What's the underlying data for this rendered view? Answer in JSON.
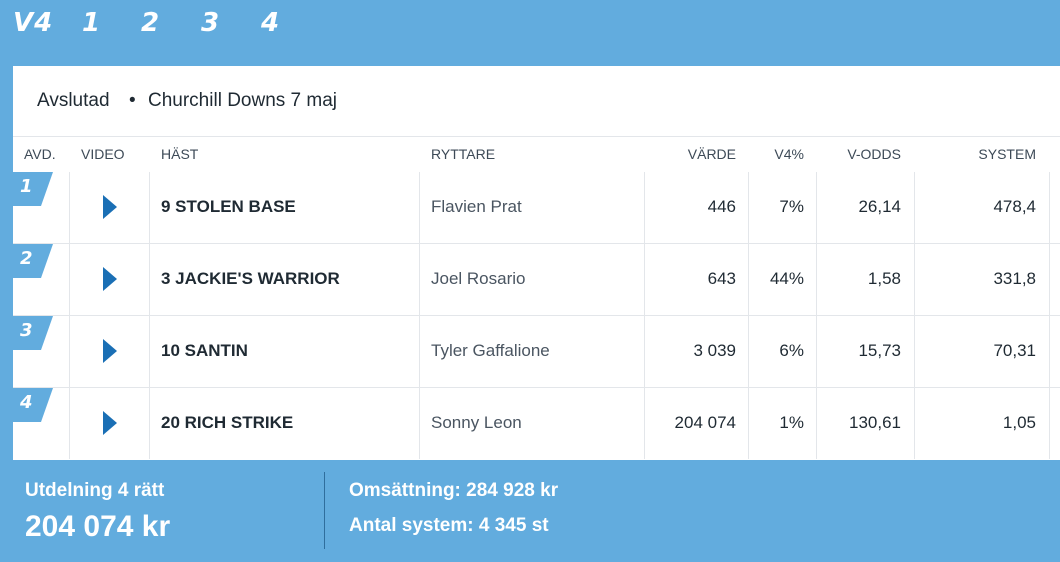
{
  "nav": {
    "tabs": [
      {
        "label": "V4"
      },
      {
        "label": "1"
      },
      {
        "label": "2"
      },
      {
        "label": "3"
      },
      {
        "label": "4"
      }
    ]
  },
  "header": {
    "status": "Avslutad",
    "separator": "•",
    "race": "Churchill Downs 7 maj"
  },
  "table": {
    "columns": {
      "avd": "AVD.",
      "video": "VIDEO",
      "horse": "HÄST",
      "rider": "RYTTARE",
      "value": "VÄRDE",
      "pct": "V4%",
      "odds": "V-ODDS",
      "system": "SYSTEM"
    },
    "rows": [
      {
        "avd": "1",
        "horse": "9 STOLEN BASE",
        "rider": "Flavien Prat",
        "value": "446",
        "pct": "7%",
        "odds": "26,14",
        "system": "478,4"
      },
      {
        "avd": "2",
        "horse": "3 JACKIE'S WARRIOR",
        "rider": "Joel Rosario",
        "value": "643",
        "pct": "44%",
        "odds": "1,58",
        "system": "331,8"
      },
      {
        "avd": "3",
        "horse": "10 SANTIN",
        "rider": "Tyler Gaffalione",
        "value": "3 039",
        "pct": "6%",
        "odds": "15,73",
        "system": "70,31"
      },
      {
        "avd": "4",
        "horse": "20 RICH STRIKE",
        "rider": "Sonny Leon",
        "value": "204 074",
        "pct": "1%",
        "odds": "130,61",
        "system": "1,05"
      }
    ]
  },
  "footer": {
    "payout_label": "Utdelning 4 rätt",
    "payout_value": "204 074 kr",
    "turnover": "Omsättning: 284 928 kr",
    "systems": "Antal system: 4 345 st"
  },
  "colors": {
    "background": "#62acde",
    "play_icon": "#1a6fb5",
    "flag": "#62acde"
  }
}
